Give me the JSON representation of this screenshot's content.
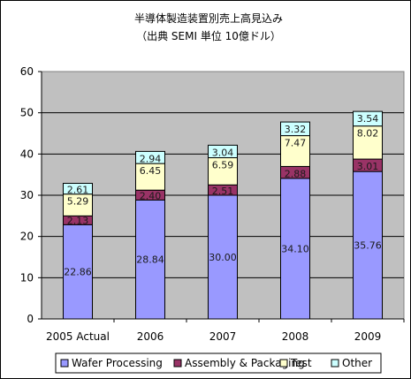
{
  "chart_data": {
    "type": "bar",
    "stacked": true,
    "title": "半導体製造装置別売上高見込み",
    "subtitle": "（出典  SEMI  単位  10億ドル）",
    "categories": [
      "2005 Actual",
      "2006",
      "2007",
      "2008",
      "2009"
    ],
    "series": [
      {
        "name": "Wafer Processing",
        "color": "#9999ff",
        "values": [
          22.86,
          28.84,
          30.0,
          34.1,
          35.76
        ],
        "labels": [
          "22.86",
          "28.84",
          "30.00",
          "34.10",
          "35.76"
        ]
      },
      {
        "name": "Assembly & Packaging",
        "color": "#993366",
        "values": [
          2.13,
          2.4,
          2.51,
          2.88,
          3.01
        ],
        "labels": [
          "2.13",
          "2.40",
          "2.51",
          "2.88",
          "3.01"
        ]
      },
      {
        "name": "Test",
        "color": "#ffffcc",
        "values": [
          5.29,
          6.45,
          6.59,
          7.47,
          8.02
        ],
        "labels": [
          "5.29",
          "6.45",
          "6.59",
          "7.47",
          "8.02"
        ]
      },
      {
        "name": "Other",
        "color": "#ccffff",
        "values": [
          2.61,
          2.94,
          3.04,
          3.32,
          3.54
        ],
        "labels": [
          "2.61",
          "2.94",
          "3.04",
          "3.32",
          "3.54"
        ]
      }
    ],
    "ylim": [
      0,
      60
    ],
    "yticks": [
      "0",
      "10",
      "20",
      "30",
      "40",
      "50",
      "60"
    ],
    "grid": true,
    "plot_background": "#c0c0c0",
    "legend_position": "bottom"
  }
}
